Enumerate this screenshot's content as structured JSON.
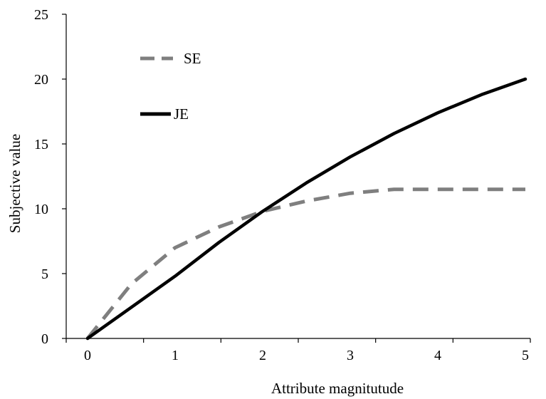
{
  "chart_data": {
    "type": "line",
    "title": "",
    "xlabel": "Attribute magnitutude",
    "ylabel": "Subjective value",
    "xlim": [
      0,
      5
    ],
    "ylim": [
      0,
      25
    ],
    "x_ticks": [
      "0",
      "1",
      "2",
      "3",
      "4",
      "5"
    ],
    "y_ticks": [
      "0",
      "5",
      "10",
      "15",
      "20",
      "25"
    ],
    "grid": false,
    "legend_position": "top-left",
    "series": [
      {
        "name": "SE",
        "style": "dashed",
        "color": "#7f7f7f",
        "x": [
          0,
          0.5,
          1,
          1.5,
          2,
          2.5,
          3,
          3.5,
          4,
          4.5,
          5
        ],
        "y": [
          0,
          4.2,
          7.0,
          8.6,
          9.8,
          10.6,
          11.2,
          11.5,
          11.5,
          11.5,
          11.5
        ]
      },
      {
        "name": "JE",
        "style": "solid",
        "color": "#000000",
        "x": [
          0,
          0.5,
          1,
          1.5,
          2,
          2.5,
          3,
          3.5,
          4,
          4.5,
          5
        ],
        "y": [
          0,
          2.4,
          4.8,
          7.4,
          9.8,
          12.0,
          14.0,
          15.8,
          17.4,
          18.8,
          20.0
        ]
      }
    ]
  }
}
